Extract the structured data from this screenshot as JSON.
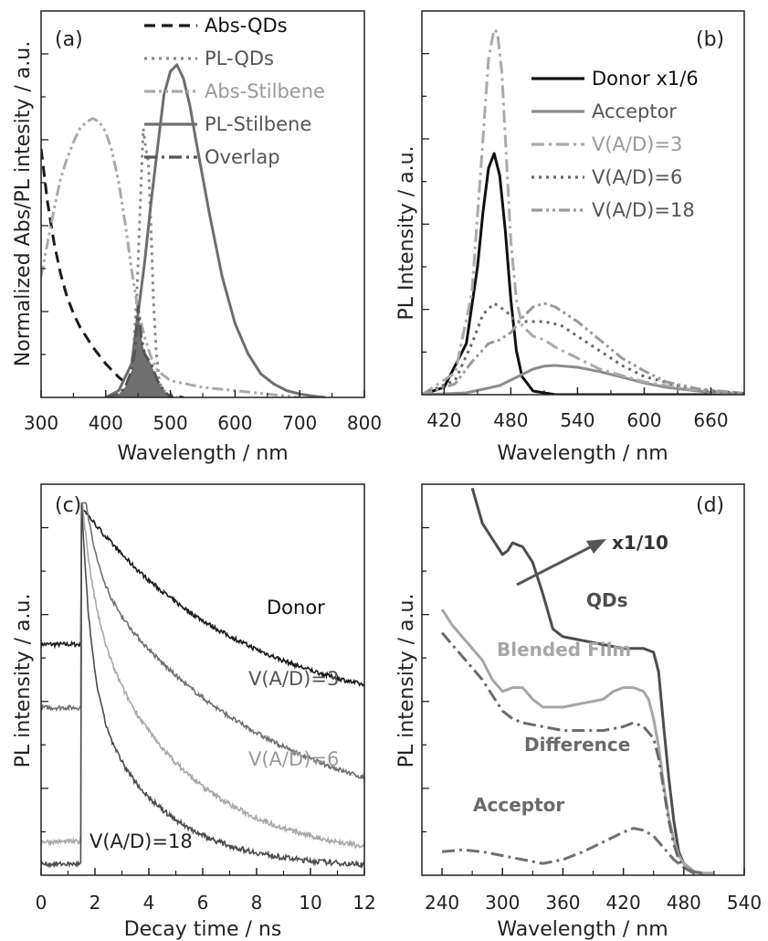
{
  "chart_data": [
    {
      "panel": "(a)",
      "type": "line",
      "xlabel": "Wavelength / nm",
      "ylabel": "Normalized Abs/PL intesity / a.u.",
      "xlim": [
        300,
        800
      ],
      "ylim": [
        0,
        1.15
      ],
      "xticks": [
        300,
        400,
        500,
        600,
        700,
        800
      ],
      "legend_position": "top-center",
      "series": [
        {
          "name": "Abs-QDs",
          "color": "#1a1a1a",
          "style": "dash",
          "x": [
            300,
            310,
            320,
            330,
            340,
            350,
            360,
            380,
            400,
            420,
            440,
            460,
            480,
            500,
            520
          ],
          "y": [
            0.74,
            0.58,
            0.46,
            0.37,
            0.3,
            0.25,
            0.21,
            0.15,
            0.1,
            0.06,
            0.03,
            0.015,
            0.008,
            0.004,
            0.0
          ]
        },
        {
          "name": "PL-QDs",
          "color": "#8a8a8a",
          "style": "dot",
          "x": [
            430,
            440,
            448,
            454,
            458,
            462,
            466,
            470,
            474,
            478,
            482,
            486,
            490,
            500,
            510
          ],
          "y": [
            0.0,
            0.05,
            0.3,
            0.6,
            0.8,
            0.74,
            0.7,
            0.5,
            0.28,
            0.14,
            0.06,
            0.03,
            0.02,
            0.01,
            0.0
          ]
        },
        {
          "name": "Abs-Stilbene",
          "color": "#aaaaaa",
          "style": "dashdotdot",
          "x": [
            300,
            310,
            320,
            330,
            340,
            350,
            360,
            370,
            380,
            390,
            400,
            410,
            420,
            430,
            440,
            450,
            460,
            470,
            480,
            500,
            550,
            600,
            650,
            700
          ],
          "y": [
            0.36,
            0.46,
            0.56,
            0.65,
            0.71,
            0.76,
            0.8,
            0.82,
            0.83,
            0.82,
            0.79,
            0.73,
            0.64,
            0.52,
            0.38,
            0.26,
            0.18,
            0.12,
            0.08,
            0.05,
            0.03,
            0.02,
            0.01,
            0.0
          ]
        },
        {
          "name": "PL-Stilbene",
          "color": "#6e6e6e",
          "style": "solid",
          "x": [
            400,
            420,
            440,
            460,
            470,
            480,
            490,
            500,
            510,
            520,
            530,
            540,
            560,
            580,
            600,
            620,
            640,
            660,
            680,
            700,
            720,
            740
          ],
          "y": [
            0.0,
            0.02,
            0.1,
            0.4,
            0.58,
            0.74,
            0.9,
            0.97,
            0.99,
            0.95,
            0.87,
            0.76,
            0.55,
            0.36,
            0.22,
            0.13,
            0.07,
            0.04,
            0.02,
            0.01,
            0.004,
            0.0
          ]
        },
        {
          "name": "Overlap",
          "color": "#555555",
          "style": "dashdot-filled",
          "x": [
            400,
            420,
            430,
            440,
            445,
            450,
            455,
            460,
            470,
            480,
            490,
            500
          ],
          "y": [
            0.0,
            0.01,
            0.03,
            0.08,
            0.14,
            0.27,
            0.18,
            0.13,
            0.1,
            0.05,
            0.02,
            0.0
          ]
        }
      ]
    },
    {
      "panel": "(b)",
      "type": "line",
      "xlabel": "Wavelength / nm",
      "ylabel": "PL Intensity / a.u.",
      "xlim": [
        400,
        690
      ],
      "ylim": [
        0,
        1.05
      ],
      "xticks": [
        420,
        480,
        540,
        600,
        660
      ],
      "legend_position": "top-right",
      "series": [
        {
          "name": "Donor x1/6",
          "color": "#111111",
          "style": "solid",
          "x": [
            400,
            420,
            440,
            450,
            455,
            460,
            465,
            470,
            475,
            480,
            485,
            490,
            500,
            520,
            690
          ],
          "y": [
            0.0,
            0.02,
            0.14,
            0.35,
            0.5,
            0.62,
            0.66,
            0.6,
            0.45,
            0.26,
            0.12,
            0.05,
            0.01,
            0.0,
            0.0
          ]
        },
        {
          "name": "Acceptor",
          "color": "#8c8c8c",
          "style": "solid",
          "x": [
            400,
            440,
            470,
            490,
            500,
            510,
            520,
            540,
            560,
            580,
            600,
            620,
            660,
            690
          ],
          "y": [
            0.0,
            0.005,
            0.025,
            0.055,
            0.07,
            0.078,
            0.08,
            0.075,
            0.063,
            0.048,
            0.032,
            0.02,
            0.006,
            0.002
          ]
        },
        {
          "name": "V(A/D)=3",
          "color": "#aaaaaa",
          "style": "dashdot",
          "x": [
            400,
            430,
            445,
            455,
            460,
            465,
            468,
            472,
            476,
            480,
            485,
            490,
            500,
            510,
            520,
            540,
            560,
            600,
            640,
            690
          ],
          "y": [
            0.0,
            0.06,
            0.28,
            0.7,
            0.92,
            1.0,
            0.99,
            0.88,
            0.65,
            0.42,
            0.26,
            0.19,
            0.16,
            0.15,
            0.13,
            0.1,
            0.07,
            0.035,
            0.015,
            0.004
          ]
        },
        {
          "name": "V(A/D)=6",
          "color": "#6a6a6a",
          "style": "dot",
          "x": [
            400,
            430,
            445,
            455,
            465,
            475,
            485,
            495,
            510,
            525,
            540,
            560,
            580,
            600,
            630,
            660,
            690
          ],
          "y": [
            0.0,
            0.04,
            0.14,
            0.22,
            0.25,
            0.23,
            0.2,
            0.2,
            0.2,
            0.19,
            0.16,
            0.12,
            0.08,
            0.05,
            0.025,
            0.01,
            0.003
          ]
        },
        {
          "name": "V(A/D)=18",
          "color": "#9a9a9a",
          "style": "dashdotdot",
          "x": [
            400,
            430,
            445,
            460,
            470,
            480,
            490,
            500,
            510,
            520,
            530,
            540,
            560,
            580,
            600,
            620,
            650,
            690
          ],
          "y": [
            0.0,
            0.03,
            0.09,
            0.14,
            0.15,
            0.17,
            0.21,
            0.24,
            0.25,
            0.24,
            0.22,
            0.2,
            0.15,
            0.1,
            0.065,
            0.035,
            0.015,
            0.004
          ]
        }
      ]
    },
    {
      "panel": "(c)",
      "type": "line",
      "xlabel": "Decay time / ns",
      "ylabel": "PL intensity / a.u.",
      "xlim": [
        0,
        12
      ],
      "ylim": [
        0,
        1.05
      ],
      "xticks": [
        0,
        2,
        4,
        6,
        8,
        10,
        12
      ],
      "series": [
        {
          "name": "Donor",
          "color": "#1a1a1a",
          "tau1": 5.5,
          "tau2": 30,
          "a1": 0.3,
          "base": 0.56
        },
        {
          "name": "V(A/D)=3",
          "color": "#707070",
          "tau1": 0.5,
          "tau2": 8,
          "a1": 0.28,
          "base": 0.44
        },
        {
          "name": "V(A/D)=6",
          "color": "#a8a8a8",
          "tau1": 0.5,
          "tau2": 4.8,
          "a1": 0.3,
          "base": 0.07
        },
        {
          "name": "V(A/D)=18",
          "color": "#4c4c4c",
          "tau1": 0.45,
          "tau2": 3.3,
          "a1": 0.5,
          "base": 0.02
        }
      ]
    },
    {
      "panel": "(d)",
      "type": "line",
      "xlabel": "Wavelength / nm",
      "ylabel": "PL intensity / a.u.",
      "xlim": [
        220,
        540
      ],
      "ylim": [
        0,
        1
      ],
      "xticks": [
        240,
        300,
        360,
        420,
        480,
        540
      ],
      "arrow_label": "x1/10",
      "series": [
        {
          "name": "QDs",
          "color": "#4d4d4d",
          "style": "solid",
          "x": [
            270,
            280,
            290,
            300,
            305,
            310,
            320,
            330,
            340,
            350,
            360,
            380,
            400,
            420,
            440,
            450,
            455,
            460,
            465,
            470,
            475,
            480,
            490,
            500,
            510
          ],
          "y": [
            0.99,
            0.9,
            0.86,
            0.82,
            0.83,
            0.85,
            0.84,
            0.8,
            0.72,
            0.63,
            0.61,
            0.6,
            0.59,
            0.58,
            0.58,
            0.57,
            0.52,
            0.38,
            0.25,
            0.14,
            0.06,
            0.03,
            0.01,
            0.005,
            0.005
          ]
        },
        {
          "name": "Blended Film",
          "color": "#a6a6a6",
          "style": "solid",
          "x": [
            240,
            250,
            260,
            270,
            280,
            290,
            300,
            310,
            320,
            330,
            340,
            360,
            380,
            400,
            410,
            420,
            430,
            440,
            445,
            450,
            455,
            460,
            465,
            470,
            475,
            480,
            490,
            500,
            510
          ],
          "y": [
            0.68,
            0.64,
            0.61,
            0.58,
            0.55,
            0.5,
            0.47,
            0.48,
            0.48,
            0.45,
            0.43,
            0.43,
            0.44,
            0.45,
            0.47,
            0.48,
            0.48,
            0.47,
            0.45,
            0.4,
            0.33,
            0.23,
            0.15,
            0.09,
            0.05,
            0.03,
            0.01,
            0.005,
            0.005
          ]
        },
        {
          "name": "Difference",
          "color": "#6a6a6a",
          "style": "dashdot",
          "x": [
            240,
            250,
            260,
            270,
            280,
            290,
            300,
            310,
            320,
            340,
            360,
            380,
            400,
            420,
            430,
            440,
            450,
            455,
            460,
            465,
            470,
            475,
            480,
            490,
            500
          ],
          "y": [
            0.62,
            0.59,
            0.56,
            0.53,
            0.5,
            0.46,
            0.42,
            0.4,
            0.39,
            0.38,
            0.37,
            0.37,
            0.37,
            0.38,
            0.39,
            0.38,
            0.35,
            0.3,
            0.22,
            0.14,
            0.08,
            0.04,
            0.02,
            0.005,
            0.005
          ]
        },
        {
          "name": "Acceptor",
          "color": "#707070",
          "style": "dashdot",
          "x": [
            240,
            260,
            280,
            300,
            320,
            340,
            360,
            380,
            400,
            420,
            430,
            440,
            450,
            460,
            470,
            480,
            490,
            500
          ],
          "y": [
            0.06,
            0.065,
            0.06,
            0.05,
            0.04,
            0.03,
            0.04,
            0.06,
            0.085,
            0.11,
            0.12,
            0.115,
            0.1,
            0.07,
            0.04,
            0.02,
            0.008,
            0.005
          ]
        }
      ]
    }
  ]
}
